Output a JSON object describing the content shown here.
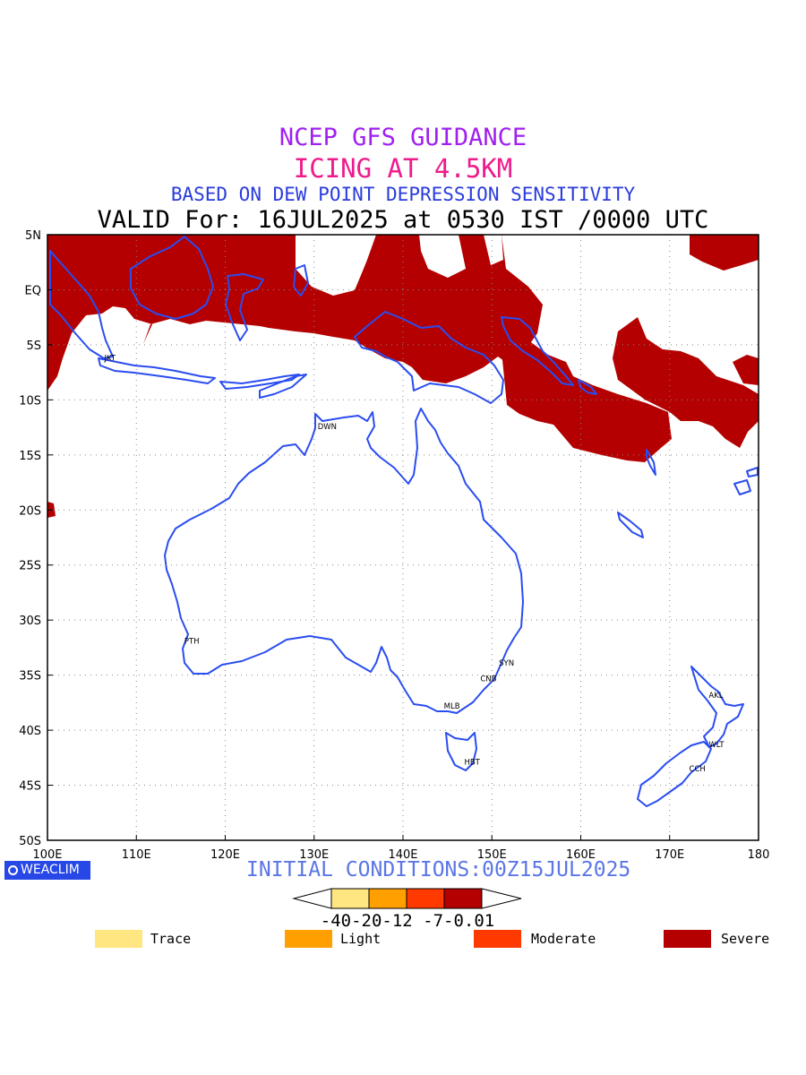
{
  "header": {
    "line1": "NCEP GFS GUIDANCE",
    "line2": "ICING AT 4.5KM",
    "line3": "BASED ON DEW POINT DEPRESSION SENSITIVITY",
    "line4": "VALID For: 16JUL2025 at 0530 IST /0000 UTC"
  },
  "map": {
    "lon_range": [
      100,
      180
    ],
    "lat_range": [
      -50,
      5
    ],
    "lon_ticks": [
      "100E",
      "110E",
      "120E",
      "130E",
      "140E",
      "150E",
      "160E",
      "170E",
      "180"
    ],
    "lat_ticks": [
      "5N",
      "EQ",
      "5S",
      "10S",
      "15S",
      "20S",
      "25S",
      "30S",
      "35S",
      "40S",
      "45S",
      "50S"
    ],
    "grid": true,
    "coastline_color": "#2a4df0",
    "icing_color": "#b40000",
    "cities": [
      {
        "label": "JKT",
        "lon": 106.8,
        "lat": -6.2
      },
      {
        "label": "DWN",
        "lon": 130.8,
        "lat": -12.4
      },
      {
        "label": "PTH",
        "lon": 115.8,
        "lat": -31.9
      },
      {
        "label": "SYN",
        "lon": 151.2,
        "lat": -33.9
      },
      {
        "label": "CNB",
        "lon": 149.1,
        "lat": -35.3
      },
      {
        "label": "MLB",
        "lon": 145.0,
        "lat": -37.8
      },
      {
        "label": "HBT",
        "lon": 147.3,
        "lat": -42.9
      },
      {
        "label": "AKL",
        "lon": 174.8,
        "lat": -36.8
      },
      {
        "label": "WLT",
        "lon": 174.8,
        "lat": -41.3
      },
      {
        "label": "CCH",
        "lon": 172.6,
        "lat": -43.5
      }
    ]
  },
  "footer": {
    "initial": "INITIAL CONDITIONS:00Z15JUL2025",
    "brand": "WEACLIM"
  },
  "colorbar": {
    "colors": [
      "#ffe680",
      "#ffa000",
      "#ff3a00",
      "#b40000"
    ],
    "ticks_label": "-40-20-12 -7-0.01"
  },
  "legend": [
    {
      "label": "Trace",
      "color": "#ffe680"
    },
    {
      "label": "Light",
      "color": "#ffa000"
    },
    {
      "label": "Moderate",
      "color": "#ff3a00"
    },
    {
      "label": "Severe",
      "color": "#b40000"
    }
  ]
}
